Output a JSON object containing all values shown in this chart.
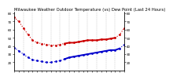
{
  "title": "Milwaukee Weather Outdoor Temperature (vs) Dew Point (Last 24 Hours)",
  "title_fontsize": 3.8,
  "bg_color": "#ffffff",
  "plot_bg_color": "#ffffff",
  "grid_color": "#888888",
  "red_line_color": "#cc0000",
  "blue_line_color": "#0000cc",
  "temp_y": [
    75,
    70,
    62,
    54,
    47,
    44,
    43,
    42,
    41,
    41,
    42,
    43,
    44,
    44,
    45,
    46,
    47,
    47,
    47,
    48,
    48,
    49,
    50,
    54,
    62
  ],
  "dew_y": [
    38,
    34,
    30,
    26,
    23,
    22,
    21,
    20,
    20,
    21,
    22,
    24,
    26,
    27,
    28,
    29,
    30,
    31,
    32,
    33,
    34,
    35,
    35,
    37,
    42
  ],
  "temp_style": [
    0,
    0,
    0,
    0,
    0,
    0,
    0,
    0,
    0,
    0,
    0,
    0,
    1,
    1,
    1,
    1,
    0,
    0,
    1,
    0,
    1,
    0,
    1,
    1,
    0
  ],
  "dew_style": [
    0,
    0,
    0,
    0,
    0,
    0,
    0,
    0,
    0,
    0,
    0,
    0,
    1,
    1,
    1,
    1,
    1,
    1,
    1,
    1,
    1,
    1,
    1,
    1,
    0
  ],
  "x": [
    0,
    1,
    2,
    3,
    4,
    5,
    6,
    7,
    8,
    9,
    10,
    11,
    12,
    13,
    14,
    15,
    16,
    17,
    18,
    19,
    20,
    21,
    22,
    23,
    24
  ],
  "ylim": [
    10,
    82
  ],
  "xlim": [
    0,
    24
  ],
  "yticks_left": [
    20,
    30,
    40,
    50,
    60,
    70,
    80
  ],
  "ytick_left_labels": [
    "20",
    "30",
    "40",
    "50",
    "60",
    "70",
    "80"
  ],
  "yticks_right": [
    20,
    30,
    40,
    50,
    60,
    70,
    80
  ],
  "ytick_right_labels": [
    "20",
    "30",
    "40",
    "50",
    "60",
    "70",
    "80"
  ],
  "xtick_positions": [
    0,
    1,
    2,
    3,
    4,
    5,
    6,
    7,
    8,
    9,
    10,
    11,
    12,
    13,
    14,
    15,
    16,
    17,
    18,
    19,
    20,
    21,
    22,
    23,
    24
  ],
  "grid_positions": [
    2,
    4,
    6,
    8,
    10,
    12,
    14,
    16,
    18,
    20,
    22,
    24
  ],
  "tick_fontsize": 3.0,
  "linewidth_dotted": 0.8,
  "linewidth_solid": 1.4,
  "dot_size": 2.0
}
